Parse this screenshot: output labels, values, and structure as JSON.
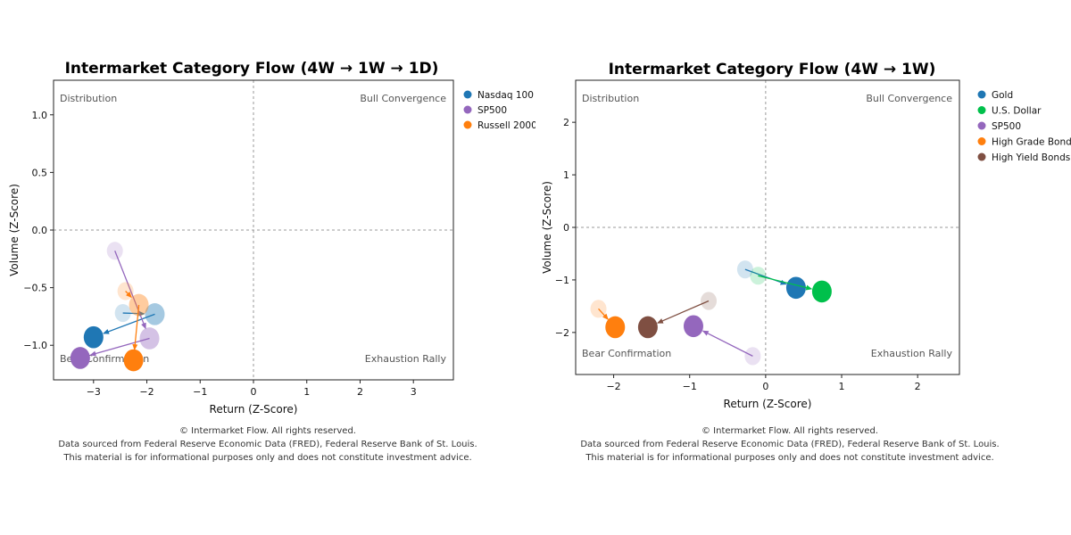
{
  "chart_data": [
    {
      "type": "scatter",
      "title": "Intermarket Category Flow (4W → 1W → 1D)",
      "xlabel": "Return (Z-Score)",
      "ylabel": "Volume (Z-Score)",
      "xlim": [
        -3.75,
        3.75
      ],
      "ylim": [
        -1.3,
        1.3
      ],
      "xticks": [
        -3,
        -2,
        -1,
        0,
        1,
        2,
        3
      ],
      "yticks": [
        -1.0,
        -0.5,
        0.0,
        0.5,
        1.0
      ],
      "xtick_labels": [
        "−3",
        "−2",
        "−1",
        "0",
        "1",
        "2",
        "3"
      ],
      "ytick_labels": [
        "−1.0",
        "−0.5",
        "0.0",
        "0.5",
        "1.0"
      ],
      "quadrants": {
        "top_left": "Distribution",
        "top_right": "Bull Convergence",
        "bottom_left": "Bear Confirmation",
        "bottom_right": "Exhaustion Rally"
      },
      "legend_position": "outside-right",
      "series": [
        {
          "name": "Nasdaq 100",
          "color": "#1f77b4",
          "points": [
            {
              "x": -2.45,
              "y": -0.72
            },
            {
              "x": -1.85,
              "y": -0.73
            },
            {
              "x": -3.0,
              "y": -0.93
            }
          ]
        },
        {
          "name": "SP500",
          "color": "#9467bd",
          "points": [
            {
              "x": -2.6,
              "y": -0.18
            },
            {
              "x": -1.95,
              "y": -0.94
            },
            {
              "x": -3.25,
              "y": -1.11
            }
          ]
        },
        {
          "name": "Russell 2000",
          "color": "#ff7f0e",
          "points": [
            {
              "x": -2.4,
              "y": -0.53
            },
            {
              "x": -2.15,
              "y": -0.65
            },
            {
              "x": -2.25,
              "y": -1.13
            }
          ]
        }
      ]
    },
    {
      "type": "scatter",
      "title": "Intermarket Category Flow (4W → 1W)",
      "xlabel": "Return (Z-Score)",
      "ylabel": "Volume (Z-Score)",
      "xlim": [
        -2.5,
        2.55
      ],
      "ylim": [
        -2.8,
        2.8
      ],
      "xticks": [
        -2,
        -1,
        0,
        1,
        2
      ],
      "yticks": [
        -2,
        -1,
        0,
        1,
        2
      ],
      "xtick_labels": [
        "−2",
        "−1",
        "0",
        "1",
        "2"
      ],
      "ytick_labels": [
        "−2",
        "−1",
        "0",
        "1",
        "2"
      ],
      "quadrants": {
        "top_left": "Distribution",
        "top_right": "Bull Convergence",
        "bottom_left": "Bear Confirmation",
        "bottom_right": "Exhaustion Rally"
      },
      "legend_position": "outside-right",
      "series": [
        {
          "name": "Gold",
          "color": "#1f77b4",
          "points": [
            {
              "x": -0.27,
              "y": -0.8
            },
            {
              "x": 0.4,
              "y": -1.15
            }
          ]
        },
        {
          "name": "U.S. Dollar",
          "color": "#00c04b",
          "points": [
            {
              "x": -0.1,
              "y": -0.92
            },
            {
              "x": 0.74,
              "y": -1.22
            }
          ]
        },
        {
          "name": "SP500",
          "color": "#9467bd",
          "points": [
            {
              "x": -0.17,
              "y": -2.45
            },
            {
              "x": -0.95,
              "y": -1.88
            }
          ]
        },
        {
          "name": "High Grade Bonds",
          "color": "#ff7f0e",
          "points": [
            {
              "x": -2.2,
              "y": -1.55
            },
            {
              "x": -1.98,
              "y": -1.9
            }
          ]
        },
        {
          "name": "High Yield Bonds",
          "color": "#7f4f42",
          "points": [
            {
              "x": -0.75,
              "y": -1.4
            },
            {
              "x": -1.55,
              "y": -1.9
            }
          ]
        }
      ]
    }
  ],
  "footer": {
    "line1": "© Intermarket Flow. All rights reserved.",
    "line2": "Data sourced from Federal Reserve Economic Data (FRED), Federal Reserve Bank of St. Louis.",
    "line3": "This material is for informational purposes only and does not constitute investment advice."
  }
}
